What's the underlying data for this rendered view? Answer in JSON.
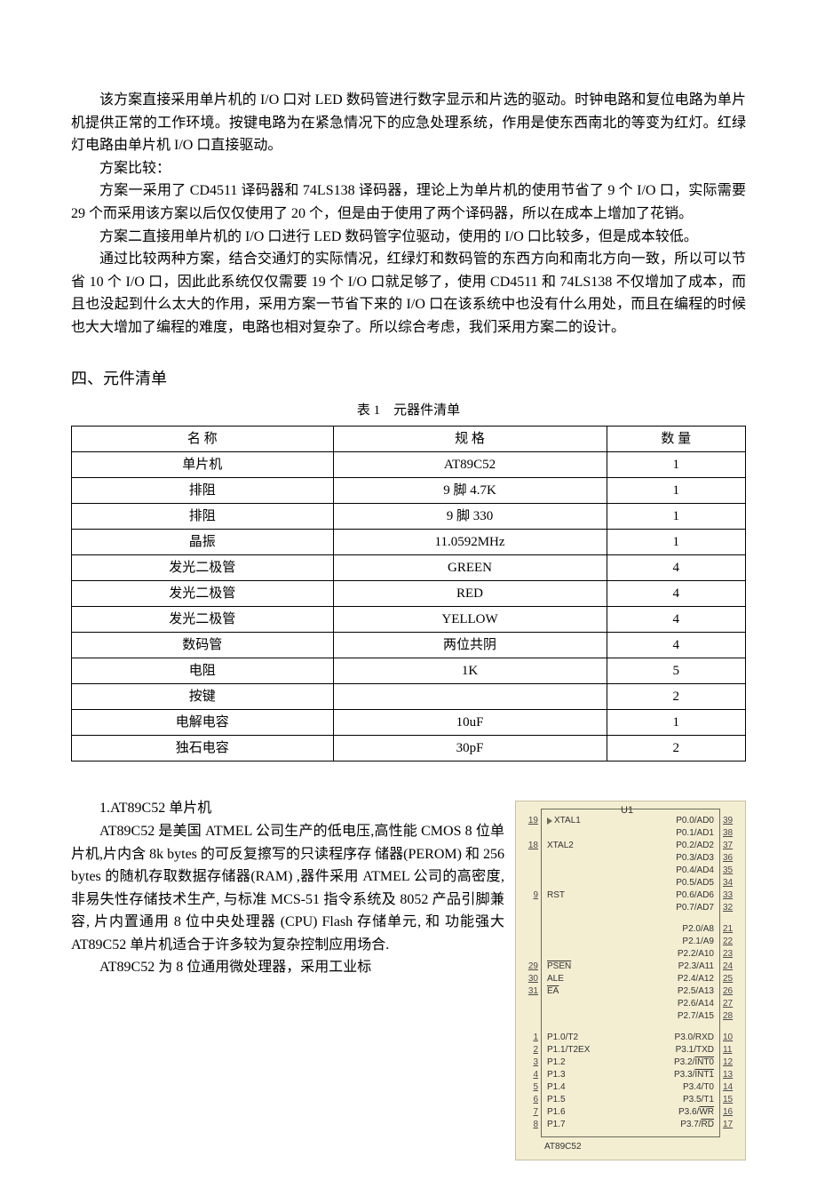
{
  "paragraphs": {
    "p1": "该方案直接采用单片机的 I/O 口对 LED 数码管进行数字显示和片选的驱动。时钟电路和复位电路为单片机提供正常的工作环境。按键电路为在紧急情况下的应急处理系统，作用是使东西南北的等变为红灯。红绿灯电路由单片机 I/O 口直接驱动。",
    "p2": "方案比较：",
    "p3": "方案一采用了 CD4511 译码器和 74LS138 译码器，理论上为单片机的使用节省了 9 个 I/O 口，实际需要 29 个而采用该方案以后仅仅使用了 20 个，但是由于使用了两个译码器，所以在成本上增加了花销。",
    "p4": "方案二直接用单片机的 I/O 口进行 LED 数码管字位驱动，使用的 I/O 口比较多，但是成本较低。",
    "p5": "通过比较两种方案，结合交通灯的实际情况，红绿灯和数码管的东西方向和南北方向一致，所以可以节省 10 个 I/O 口，因此此系统仅仅需要 19 个 I/O 口就足够了，使用 CD4511 和 74LS138 不仅增加了成本，而且也没起到什么太大的作用，采用方案一节省下来的 I/O 口在该系统中也没有什么用处，而且在编程的时候也大大增加了编程的难度，电路也相对复杂了。所以综合考虑，我们采用方案二的设计。"
  },
  "section_title": "四、元件清单",
  "table": {
    "caption": "表 1　元器件清单",
    "headers": [
      "名 称",
      "规 格",
      "数 量"
    ],
    "rows": [
      [
        "单片机",
        "AT89C52",
        "1"
      ],
      [
        "排阻",
        "9 脚 4.7K",
        "1"
      ],
      [
        "排阻",
        "9 脚 330",
        "1"
      ],
      [
        "晶振",
        "11.0592MHz",
        "1"
      ],
      [
        "发光二极管",
        "GREEN",
        "4"
      ],
      [
        "发光二极管",
        "RED",
        "4"
      ],
      [
        "发光二极管",
        "YELLOW",
        "4"
      ],
      [
        "数码管",
        "两位共阴",
        "4"
      ],
      [
        "电阻",
        "1K",
        "5"
      ],
      [
        "按键",
        "",
        "2"
      ],
      [
        "电解电容",
        "10uF",
        "1"
      ],
      [
        "独石电容",
        "30pF",
        "2"
      ]
    ]
  },
  "chip_section": {
    "title": "1.AT89C52 单片机",
    "p1": "AT89C52 是美国 ATMEL 公司生产的低电压,高性能 CMOS 8 位单片机,片内含 8k bytes 的可反复擦写的只读程序存 储器(PEROM) 和 256 bytes 的随机存取数据存储器(RAM) ,器件采用 ATMEL 公司的高密度,非易失性存储技术生产, 与标准 MCS-51 指令系统及 8052 产品引脚兼容, 片内置通用 8 位中央处理器 (CPU) Flash 存储单元, 和 功能强大 AT89C52 单片机适合于许多较为复杂控制应用场合.",
    "p2": "AT89C52 为 8 位通用微处理器，采用工业标"
  },
  "chip": {
    "ref": "U1",
    "name": "AT89C52",
    "background_color": "#f3edd2",
    "border_color": "#6b6b5a",
    "rows": [
      {
        "lpin": "19",
        "l": "XTAL1",
        "r": "P0.0/AD0",
        "rpin": "39",
        "tri": true
      },
      {
        "lpin": "",
        "l": "",
        "r": "P0.1/AD1",
        "rpin": "38"
      },
      {
        "lpin": "18",
        "l": "XTAL2",
        "r": "P0.2/AD2",
        "rpin": "37"
      },
      {
        "lpin": "",
        "l": "",
        "r": "P0.3/AD3",
        "rpin": "36"
      },
      {
        "lpin": "",
        "l": "",
        "r": "P0.4/AD4",
        "rpin": "35"
      },
      {
        "lpin": "",
        "l": "",
        "r": "P0.5/AD5",
        "rpin": "34"
      },
      {
        "lpin": "9",
        "l": "RST",
        "r": "P0.6/AD6",
        "rpin": "33"
      },
      {
        "lpin": "",
        "l": "",
        "r": "P0.7/AD7",
        "rpin": "32"
      },
      {
        "gap": true
      },
      {
        "lpin": "",
        "l": "",
        "r": "P2.0/A8",
        "rpin": "21"
      },
      {
        "lpin": "",
        "l": "",
        "r": "P2.1/A9",
        "rpin": "22"
      },
      {
        "lpin": "",
        "l": "",
        "r": "P2.2/A10",
        "rpin": "23"
      },
      {
        "lpin": "29",
        "l": "PSEN",
        "r": "P2.3/A11",
        "rpin": "24",
        "ov_l": true
      },
      {
        "lpin": "30",
        "l": "ALE",
        "r": "P2.4/A12",
        "rpin": "25"
      },
      {
        "lpin": "31",
        "l": "EA",
        "r": "P2.5/A13",
        "rpin": "26",
        "ov_l": true
      },
      {
        "lpin": "",
        "l": "",
        "r": "P2.6/A14",
        "rpin": "27"
      },
      {
        "lpin": "",
        "l": "",
        "r": "P2.7/A15",
        "rpin": "28"
      },
      {
        "gap": true
      },
      {
        "lpin": "1",
        "l": "P1.0/T2",
        "r": "P3.0/RXD",
        "rpin": "10"
      },
      {
        "lpin": "2",
        "l": "P1.1/T2EX",
        "r": "P3.1/TXD",
        "rpin": "11"
      },
      {
        "lpin": "3",
        "l": "P1.2",
        "r": "P3.2/INT0",
        "rpin": "12",
        "ov_r": "INT0"
      },
      {
        "lpin": "4",
        "l": "P1.3",
        "r": "P3.3/INT1",
        "rpin": "13",
        "ov_r": "INT1"
      },
      {
        "lpin": "5",
        "l": "P1.4",
        "r": "P3.4/T0",
        "rpin": "14"
      },
      {
        "lpin": "6",
        "l": "P1.5",
        "r": "P3.5/T1",
        "rpin": "15"
      },
      {
        "lpin": "7",
        "l": "P1.6",
        "r": "P3.6/WR",
        "rpin": "16",
        "ov_r": "WR"
      },
      {
        "lpin": "8",
        "l": "P1.7",
        "r": "P3.7/RD",
        "rpin": "17",
        "ov_r": "RD"
      }
    ]
  }
}
